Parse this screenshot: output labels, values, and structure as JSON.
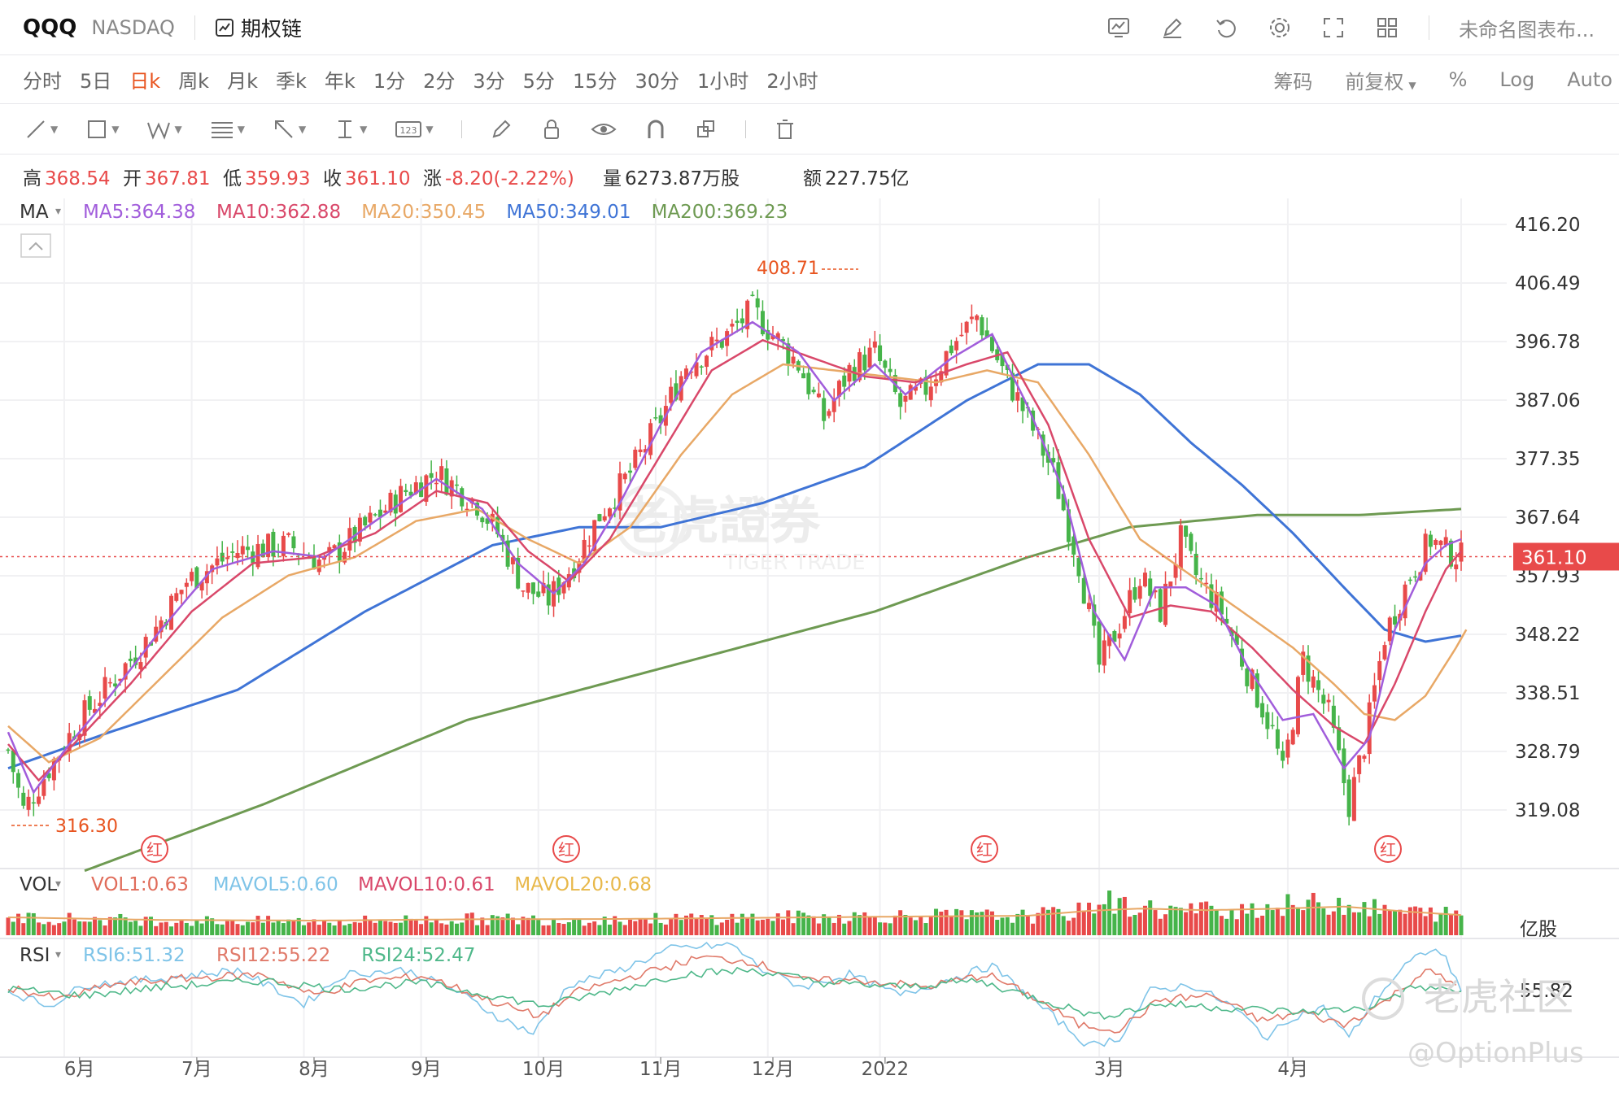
{
  "header": {
    "symbol": "QQQ",
    "exchange": "NASDAQ",
    "options_chain": "期权链",
    "chart_title": "未命名图表布..."
  },
  "periods": {
    "items": [
      "分时",
      "5日",
      "日k",
      "周k",
      "月k",
      "季k",
      "年k",
      "1分",
      "2分",
      "3分",
      "5分",
      "15分",
      "30分",
      "1小时",
      "2小时"
    ],
    "active": "日k",
    "right_items": [
      "筹码",
      "前复权",
      "%",
      "Log",
      "Auto"
    ]
  },
  "colors": {
    "up": "#e84a4a",
    "down": "#46b44a",
    "ma5": "#a15ddb",
    "ma10": "#d9486a",
    "ma20": "#e8a866",
    "ma50": "#3f74d6",
    "ma200": "#6e9a52",
    "accent": "#e8541f"
  },
  "quote": {
    "high_label": "高",
    "high": "368.54",
    "open_label": "开",
    "open": "367.81",
    "low_label": "低",
    "low": "359.93",
    "close_label": "收",
    "close": "361.10",
    "change_label": "涨",
    "change": "-8.20(-2.22%)",
    "volume_label": "量",
    "volume": "6273.87万股",
    "amount_label": "额",
    "amount": "227.75亿"
  },
  "legends": {
    "ma": {
      "name": "MA",
      "items": [
        "MA5:364.38",
        "MA10:362.88",
        "MA20:350.45",
        "MA50:349.01",
        "MA200:369.23"
      ]
    },
    "vol": {
      "name": "VOL",
      "items": [
        "VOL1:0.63",
        "MAVOL5:0.60",
        "MAVOL10:0.61",
        "MAVOL20:0.68"
      ]
    },
    "rsi": {
      "name": "RSI",
      "items": [
        "RSI6:51.32",
        "RSI12:55.22",
        "RSI24:52.47"
      ]
    }
  },
  "watermark": {
    "main": "老虎證券",
    "sub": "TIGER TRADE",
    "community": "老虎社区",
    "handle": "@OptionPlus"
  },
  "chart_data": {
    "type": "candlestick",
    "price_axis": {
      "ticks": [
        "416.20",
        "406.49",
        "396.78",
        "387.06",
        "377.35",
        "367.64",
        "357.93",
        "348.22",
        "338.51",
        "328.79",
        "319.08"
      ],
      "current_price": "361.10"
    },
    "annotations": {
      "max": "408.71",
      "min": "316.30",
      "red_marker": "红"
    },
    "volume_unit": "亿股",
    "rsi_tick": "55.82",
    "x_ticks": [
      "6月",
      "7月",
      "8月",
      "9月",
      "10月",
      "11月",
      "12月",
      "2022",
      "3月",
      "4月"
    ],
    "anchors": [
      [
        0,
        329
      ],
      [
        3,
        319
      ],
      [
        8,
        326
      ],
      [
        14,
        334
      ],
      [
        20,
        340
      ],
      [
        28,
        348
      ],
      [
        35,
        357
      ],
      [
        45,
        362
      ],
      [
        55,
        363
      ],
      [
        62,
        360
      ],
      [
        70,
        366
      ],
      [
        78,
        372
      ],
      [
        84,
        375
      ],
      [
        92,
        370
      ],
      [
        96,
        365
      ],
      [
        101,
        356
      ],
      [
        106,
        354
      ],
      [
        111,
        360
      ],
      [
        116,
        368
      ],
      [
        122,
        375
      ],
      [
        128,
        384
      ],
      [
        133,
        393
      ],
      [
        140,
        397
      ],
      [
        146,
        402
      ],
      [
        150,
        398
      ],
      [
        155,
        393
      ],
      [
        160,
        384
      ],
      [
        165,
        392
      ],
      [
        170,
        395
      ],
      [
        175,
        386
      ],
      [
        180,
        389
      ],
      [
        185,
        396
      ],
      [
        190,
        401
      ],
      [
        195,
        392
      ],
      [
        200,
        384
      ],
      [
        205,
        375
      ],
      [
        210,
        360
      ],
      [
        214,
        343
      ],
      [
        218,
        350
      ],
      [
        222,
        358
      ],
      [
        226,
        352
      ],
      [
        230,
        364
      ],
      [
        233,
        358
      ],
      [
        238,
        352
      ],
      [
        243,
        342
      ],
      [
        248,
        332
      ],
      [
        250,
        325
      ],
      [
        254,
        344
      ],
      [
        259,
        335
      ],
      [
        263,
        320
      ],
      [
        266,
        330
      ],
      [
        270,
        348
      ],
      [
        275,
        358
      ],
      [
        279,
        364
      ],
      [
        282,
        362
      ],
      [
        285,
        361
      ]
    ],
    "ma5": [
      [
        0,
        332
      ],
      [
        5,
        322
      ],
      [
        12,
        330
      ],
      [
        20,
        338
      ],
      [
        30,
        349
      ],
      [
        40,
        359
      ],
      [
        52,
        362
      ],
      [
        62,
        361
      ],
      [
        72,
        367
      ],
      [
        84,
        374
      ],
      [
        93,
        369
      ],
      [
        100,
        360
      ],
      [
        107,
        355
      ],
      [
        113,
        360
      ],
      [
        120,
        370
      ],
      [
        128,
        383
      ],
      [
        136,
        395
      ],
      [
        146,
        400
      ],
      [
        155,
        395
      ],
      [
        162,
        387
      ],
      [
        170,
        393
      ],
      [
        176,
        388
      ],
      [
        185,
        394
      ],
      [
        193,
        398
      ],
      [
        200,
        386
      ],
      [
        207,
        372
      ],
      [
        213,
        352
      ],
      [
        219,
        344
      ],
      [
        225,
        356
      ],
      [
        231,
        356
      ],
      [
        237,
        353
      ],
      [
        243,
        343
      ],
      [
        250,
        334
      ],
      [
        256,
        335
      ],
      [
        262,
        326
      ],
      [
        267,
        331
      ],
      [
        272,
        349
      ],
      [
        278,
        360
      ],
      [
        282,
        363
      ],
      [
        285,
        364
      ]
    ],
    "ma10": [
      [
        0,
        330
      ],
      [
        6,
        324
      ],
      [
        14,
        331
      ],
      [
        24,
        340
      ],
      [
        36,
        352
      ],
      [
        48,
        360
      ],
      [
        60,
        361
      ],
      [
        72,
        365
      ],
      [
        84,
        372
      ],
      [
        94,
        370
      ],
      [
        102,
        362
      ],
      [
        110,
        357
      ],
      [
        118,
        364
      ],
      [
        128,
        378
      ],
      [
        138,
        392
      ],
      [
        148,
        397
      ],
      [
        158,
        394
      ],
      [
        168,
        391
      ],
      [
        178,
        390
      ],
      [
        188,
        393
      ],
      [
        196,
        395
      ],
      [
        204,
        383
      ],
      [
        212,
        364
      ],
      [
        220,
        351
      ],
      [
        228,
        353
      ],
      [
        236,
        352
      ],
      [
        244,
        346
      ],
      [
        252,
        339
      ],
      [
        260,
        333
      ],
      [
        266,
        330
      ],
      [
        272,
        340
      ],
      [
        278,
        352
      ],
      [
        282,
        359
      ],
      [
        285,
        362
      ]
    ],
    "ma20": [
      [
        0,
        333
      ],
      [
        8,
        327
      ],
      [
        18,
        331
      ],
      [
        30,
        341
      ],
      [
        42,
        351
      ],
      [
        55,
        358
      ],
      [
        68,
        361
      ],
      [
        80,
        367
      ],
      [
        92,
        369
      ],
      [
        102,
        364
      ],
      [
        112,
        360
      ],
      [
        122,
        366
      ],
      [
        132,
        378
      ],
      [
        142,
        388
      ],
      [
        152,
        393
      ],
      [
        162,
        392
      ],
      [
        172,
        391
      ],
      [
        182,
        390
      ],
      [
        192,
        392
      ],
      [
        202,
        390
      ],
      [
        212,
        378
      ],
      [
        222,
        364
      ],
      [
        232,
        358
      ],
      [
        242,
        352
      ],
      [
        252,
        346
      ],
      [
        260,
        340
      ],
      [
        266,
        335
      ],
      [
        272,
        334
      ],
      [
        278,
        338
      ],
      [
        284,
        346
      ],
      [
        286,
        349
      ]
    ],
    "ma50": [
      [
        0,
        326
      ],
      [
        20,
        332
      ],
      [
        45,
        339
      ],
      [
        70,
        352
      ],
      [
        95,
        363
      ],
      [
        112,
        366
      ],
      [
        128,
        366
      ],
      [
        148,
        370
      ],
      [
        168,
        376
      ],
      [
        188,
        387
      ],
      [
        202,
        393
      ],
      [
        212,
        393
      ],
      [
        222,
        388
      ],
      [
        232,
        380
      ],
      [
        242,
        373
      ],
      [
        252,
        365
      ],
      [
        262,
        356
      ],
      [
        270,
        349
      ],
      [
        278,
        347
      ],
      [
        285,
        348
      ]
    ],
    "ma200": [
      [
        15,
        309
      ],
      [
        50,
        320
      ],
      [
        90,
        334
      ],
      [
        130,
        343
      ],
      [
        170,
        352
      ],
      [
        200,
        361
      ],
      [
        220,
        366
      ],
      [
        245,
        368
      ],
      [
        265,
        368
      ],
      [
        285,
        369
      ]
    ],
    "volume": [
      [
        0,
        0.55
      ],
      [
        30,
        0.45
      ],
      [
        60,
        0.42
      ],
      [
        90,
        0.5
      ],
      [
        120,
        0.48
      ],
      [
        150,
        0.55
      ],
      [
        180,
        0.6
      ],
      [
        200,
        0.58
      ],
      [
        210,
        0.72
      ],
      [
        214,
        1.1
      ],
      [
        220,
        0.85
      ],
      [
        230,
        0.75
      ],
      [
        240,
        0.8
      ],
      [
        250,
        0.9
      ],
      [
        262,
        1.0
      ],
      [
        270,
        0.75
      ],
      [
        285,
        0.63
      ]
    ],
    "mavol": [
      [
        0,
        0.55
      ],
      [
        30,
        0.47
      ],
      [
        60,
        0.45
      ],
      [
        90,
        0.49
      ],
      [
        120,
        0.5
      ],
      [
        150,
        0.54
      ],
      [
        180,
        0.58
      ],
      [
        200,
        0.6
      ],
      [
        212,
        0.75
      ],
      [
        222,
        0.82
      ],
      [
        235,
        0.77
      ],
      [
        250,
        0.82
      ],
      [
        262,
        0.88
      ],
      [
        275,
        0.72
      ],
      [
        285,
        0.62
      ]
    ],
    "rsi6": [
      [
        0,
        52
      ],
      [
        8,
        45
      ],
      [
        15,
        55
      ],
      [
        30,
        58
      ],
      [
        45,
        62
      ],
      [
        58,
        46
      ],
      [
        66,
        60
      ],
      [
        78,
        62
      ],
      [
        88,
        52
      ],
      [
        96,
        40
      ],
      [
        103,
        32
      ],
      [
        110,
        55
      ],
      [
        120,
        62
      ],
      [
        130,
        72
      ],
      [
        142,
        74
      ],
      [
        148,
        62
      ],
      [
        156,
        54
      ],
      [
        165,
        60
      ],
      [
        175,
        50
      ],
      [
        185,
        58
      ],
      [
        193,
        64
      ],
      [
        200,
        50
      ],
      [
        207,
        36
      ],
      [
        212,
        26
      ],
      [
        218,
        30
      ],
      [
        224,
        52
      ],
      [
        232,
        55
      ],
      [
        240,
        45
      ],
      [
        247,
        30
      ],
      [
        252,
        40
      ],
      [
        258,
        44
      ],
      [
        263,
        30
      ],
      [
        268,
        48
      ],
      [
        274,
        64
      ],
      [
        279,
        72
      ],
      [
        282,
        68
      ],
      [
        285,
        51
      ]
    ],
    "rsi12": [
      [
        0,
        54
      ],
      [
        10,
        48
      ],
      [
        20,
        55
      ],
      [
        35,
        58
      ],
      [
        50,
        60
      ],
      [
        60,
        50
      ],
      [
        70,
        57
      ],
      [
        82,
        59
      ],
      [
        94,
        48
      ],
      [
        104,
        40
      ],
      [
        112,
        52
      ],
      [
        124,
        60
      ],
      [
        136,
        68
      ],
      [
        146,
        66
      ],
      [
        156,
        57
      ],
      [
        168,
        57
      ],
      [
        180,
        54
      ],
      [
        192,
        60
      ],
      [
        202,
        48
      ],
      [
        210,
        36
      ],
      [
        218,
        34
      ],
      [
        226,
        48
      ],
      [
        236,
        50
      ],
      [
        246,
        38
      ],
      [
        254,
        42
      ],
      [
        262,
        36
      ],
      [
        270,
        47
      ],
      [
        278,
        62
      ],
      [
        284,
        55
      ]
    ],
    "rsi24": [
      [
        0,
        53
      ],
      [
        15,
        50
      ],
      [
        30,
        54
      ],
      [
        50,
        57
      ],
      [
        65,
        53
      ],
      [
        80,
        56
      ],
      [
        95,
        50
      ],
      [
        105,
        45
      ],
      [
        118,
        52
      ],
      [
        132,
        60
      ],
      [
        146,
        62
      ],
      [
        160,
        56
      ],
      [
        175,
        54
      ],
      [
        190,
        57
      ],
      [
        204,
        47
      ],
      [
        214,
        40
      ],
      [
        226,
        46
      ],
      [
        240,
        44
      ],
      [
        254,
        42
      ],
      [
        266,
        44
      ],
      [
        276,
        54
      ],
      [
        285,
        52
      ]
    ]
  }
}
